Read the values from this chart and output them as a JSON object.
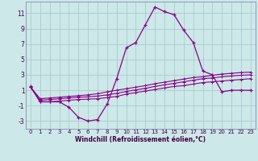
{
  "xlabel": "Windchill (Refroidissement éolien,°C)",
  "background_color": "#cce8e8",
  "grid_color": "#aacccc",
  "line_color": "#880088",
  "x_hours": [
    0,
    1,
    2,
    3,
    4,
    5,
    6,
    7,
    8,
    9,
    10,
    11,
    12,
    13,
    14,
    15,
    16,
    17,
    18,
    19,
    20,
    21,
    22,
    23
  ],
  "series_main": [
    1.5,
    -0.5,
    -0.5,
    -0.5,
    -1.2,
    -2.5,
    -3.0,
    -2.8,
    -0.8,
    2.5,
    6.5,
    7.2,
    9.5,
    11.8,
    11.2,
    10.8,
    8.8,
    7.2,
    3.5,
    3.0,
    0.8,
    1.0,
    1.0,
    1.0
  ],
  "line1": [
    1.4,
    -0.5,
    -0.5,
    -0.4,
    -0.3,
    -0.2,
    -0.15,
    -0.1,
    0.05,
    0.2,
    0.5,
    0.7,
    0.9,
    1.1,
    1.3,
    1.5,
    1.6,
    1.8,
    2.0,
    2.1,
    2.2,
    2.3,
    2.4,
    2.5
  ],
  "line2": [
    1.4,
    -0.3,
    -0.2,
    -0.1,
    0.0,
    0.1,
    0.15,
    0.25,
    0.4,
    0.6,
    0.85,
    1.05,
    1.25,
    1.5,
    1.7,
    1.9,
    2.1,
    2.3,
    2.5,
    2.6,
    2.75,
    2.85,
    2.95,
    3.0
  ],
  "line3": [
    1.4,
    -0.1,
    0.0,
    0.1,
    0.2,
    0.3,
    0.4,
    0.55,
    0.8,
    1.0,
    1.2,
    1.4,
    1.6,
    1.85,
    2.05,
    2.25,
    2.45,
    2.65,
    2.75,
    2.95,
    3.1,
    3.2,
    3.3,
    3.35
  ],
  "ylim": [
    -4,
    12.5
  ],
  "yticks": [
    -3,
    -1,
    1,
    3,
    5,
    7,
    9,
    11
  ],
  "xlim": [
    -0.5,
    23.5
  ],
  "xticks": [
    0,
    1,
    2,
    3,
    4,
    5,
    6,
    7,
    8,
    9,
    10,
    11,
    12,
    13,
    14,
    15,
    16,
    17,
    18,
    19,
    20,
    21,
    22,
    23
  ],
  "tick_fontsize": 5,
  "xlabel_fontsize": 5.5,
  "tick_color": "#440044",
  "spine_color": "#7777aa"
}
